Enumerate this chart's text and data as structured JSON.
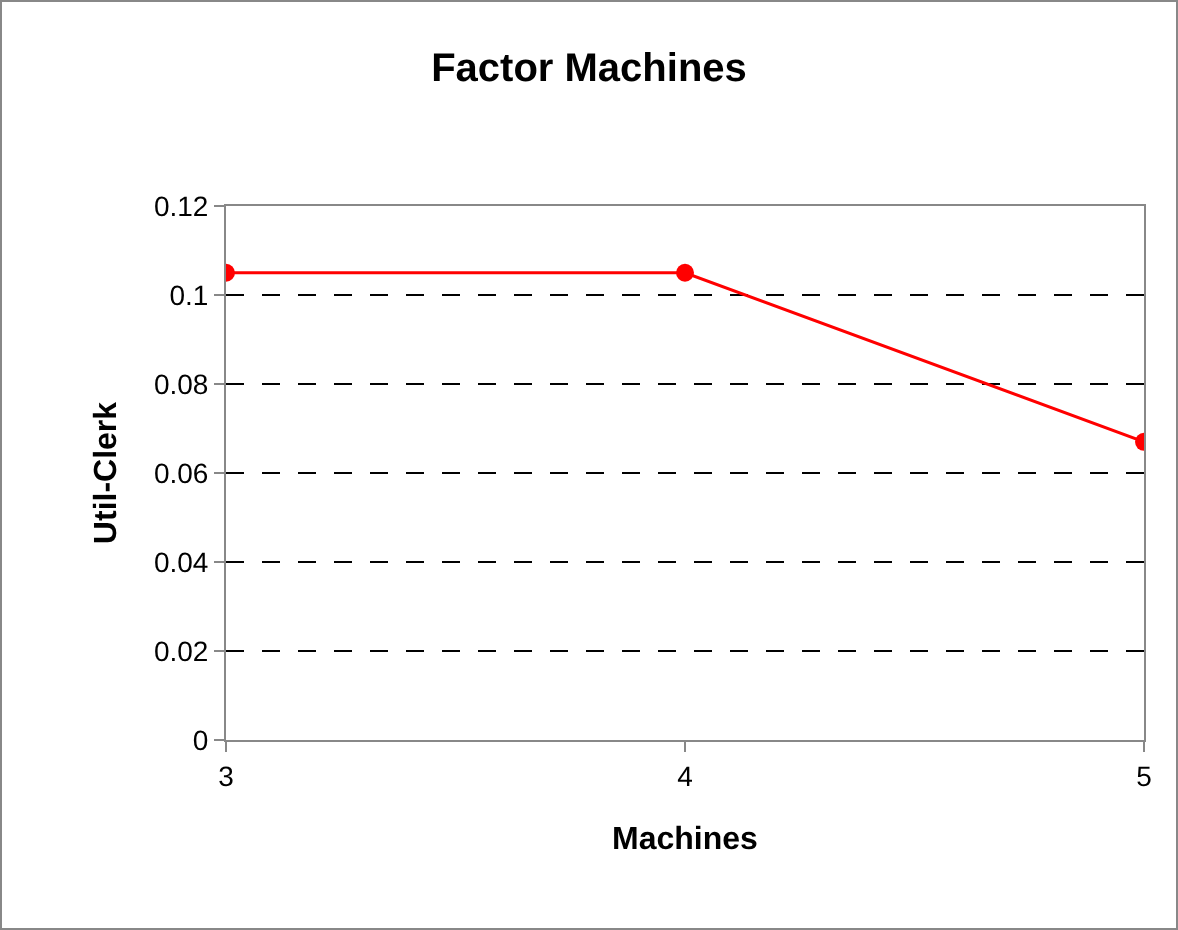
{
  "chart_data": {
    "type": "line",
    "title": "Factor Machines",
    "xlabel": "Machines",
    "ylabel": "Util-Clerk",
    "x": [
      3,
      4,
      5
    ],
    "series": [
      {
        "color": "#ff0000",
        "values": [
          0.105,
          0.105,
          0.067
        ]
      }
    ],
    "xlim": [
      3,
      5
    ],
    "xticks": [
      3,
      4,
      5
    ],
    "ylim": [
      0,
      0.12
    ],
    "yticks": [
      0,
      0.02,
      0.04,
      0.06,
      0.08,
      0.1,
      0.12
    ],
    "grid": "y",
    "marker": "circle",
    "line_style": "solid"
  }
}
